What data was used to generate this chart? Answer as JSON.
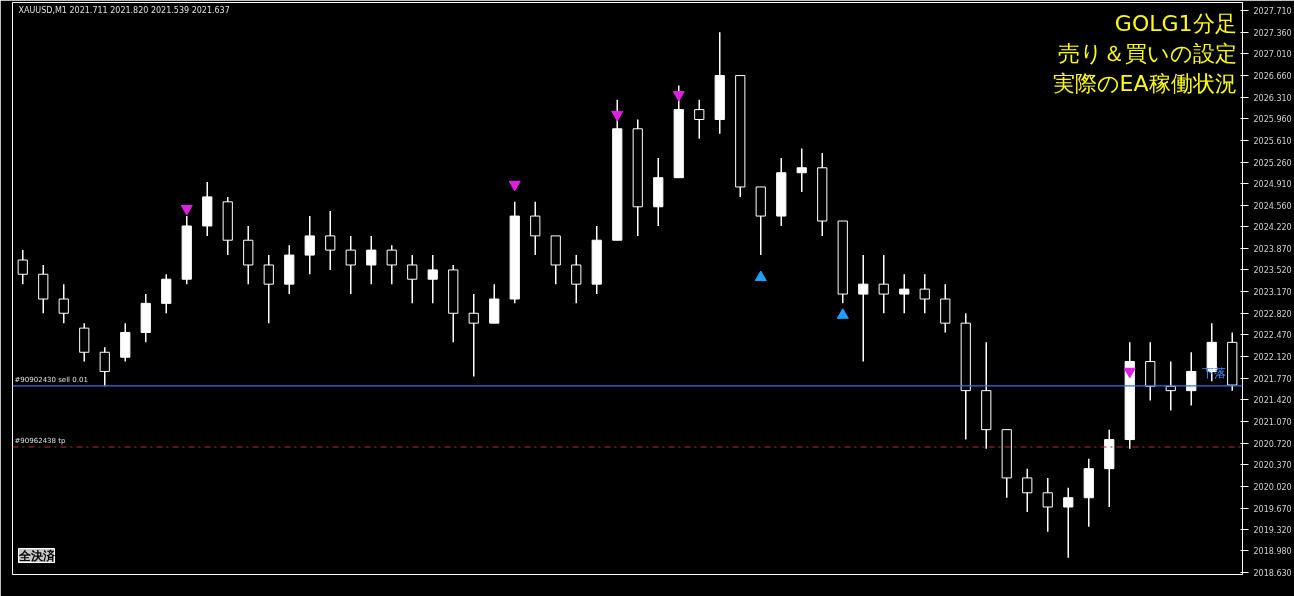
{
  "chart_data": {
    "type": "candlestick",
    "title": "GOLG1分足",
    "subtitle": "売り＆買いの設定",
    "color": "#ffffff",
    "categories": [
      null,
      null,
      null,
      null,
      null,
      null,
      null,
      null,
      null,
      null,
      null,
      null,
      null,
      null,
      null,
      null,
      null,
      null,
      null,
      null,
      null,
      null,
      null,
      null,
      null,
      null,
      null,
      null,
      null,
      null,
      null,
      null,
      null,
      null,
      null,
      null,
      null,
      null,
      null,
      null,
      null,
      null,
      null,
      null,
      null,
      null,
      null,
      null,
      null,
      null,
      null,
      null,
      null,
      null,
      null,
      null,
      null,
      null,
      null,
      null
    ],
    "ohlc": [
      [
        2023.68,
        2023.84,
        2023.29,
        2023.45
      ],
      [
        2023.45,
        2023.6,
        2022.82,
        2023.05
      ],
      [
        2023.05,
        2023.29,
        2022.66,
        2022.82
      ],
      [
        2022.58,
        2022.66,
        2022.04,
        2022.19
      ],
      [
        2022.19,
        2022.27,
        2021.64,
        2021.88
      ],
      [
        2022.11,
        2022.66,
        2022.04,
        2022.51
      ],
      [
        2022.51,
        2023.13,
        2022.35,
        2022.98
      ],
      [
        2022.98,
        2023.45,
        2022.82,
        2023.37
      ],
      [
        2023.37,
        2024.39,
        2023.29,
        2024.23
      ],
      [
        2024.23,
        2024.94,
        2024.07,
        2024.7
      ],
      [
        2024.62,
        2024.7,
        2023.76,
        2024.0
      ],
      [
        2024.0,
        2024.23,
        2023.29,
        2023.6
      ],
      [
        2023.6,
        2023.76,
        2022.66,
        2023.29
      ],
      [
        2023.29,
        2023.92,
        2023.13,
        2023.76
      ],
      [
        2023.76,
        2024.39,
        2023.45,
        2024.07
      ],
      [
        2024.07,
        2024.47,
        2023.52,
        2023.84
      ],
      [
        2023.84,
        2024.07,
        2023.13,
        2023.6
      ],
      [
        2023.6,
        2024.07,
        2023.29,
        2023.84
      ],
      [
        2023.84,
        2023.92,
        2023.29,
        2023.6
      ],
      [
        2023.6,
        2023.76,
        2022.98,
        2023.37
      ],
      [
        2023.37,
        2023.76,
        2022.98,
        2023.52
      ],
      [
        2023.52,
        2023.6,
        2022.35,
        2022.82
      ],
      [
        2022.82,
        2023.13,
        2021.8,
        2022.66
      ],
      [
        2022.66,
        2023.29,
        2022.66,
        2023.05
      ],
      [
        2023.05,
        2024.62,
        2022.98,
        2024.39
      ],
      [
        2024.39,
        2024.62,
        2023.76,
        2024.07
      ],
      [
        2024.07,
        2024.07,
        2023.29,
        2023.6
      ],
      [
        2023.6,
        2023.76,
        2022.98,
        2023.29
      ],
      [
        2023.29,
        2024.23,
        2023.13,
        2024.0
      ],
      [
        2024.0,
        2026.27,
        2024.0,
        2025.8
      ],
      [
        2025.8,
        2025.95,
        2024.07,
        2024.54
      ],
      [
        2024.54,
        2025.33,
        2024.23,
        2025.01
      ],
      [
        2025.01,
        2026.5,
        2025.01,
        2026.11
      ],
      [
        2026.11,
        2026.27,
        2025.64,
        2025.95
      ],
      [
        2025.95,
        2027.36,
        2025.72,
        2026.66
      ],
      [
        2026.66,
        2026.66,
        2024.7,
        2024.86
      ],
      [
        2024.86,
        2024.86,
        2023.76,
        2024.39
      ],
      [
        2024.39,
        2025.33,
        2024.23,
        2025.09
      ],
      [
        2025.09,
        2025.48,
        2024.78,
        2025.17
      ],
      [
        2025.17,
        2025.41,
        2024.07,
        2024.31
      ],
      [
        2024.31,
        2024.31,
        2022.98,
        2023.13
      ],
      [
        2023.13,
        2023.76,
        2022.04,
        2023.29
      ],
      [
        2023.29,
        2023.76,
        2022.82,
        2023.13
      ],
      [
        2023.13,
        2023.45,
        2022.82,
        2023.21
      ],
      [
        2023.21,
        2023.45,
        2022.82,
        2023.05
      ],
      [
        2023.05,
        2023.29,
        2022.51,
        2022.66
      ],
      [
        2022.66,
        2022.82,
        2020.78,
        2021.57
      ],
      [
        2021.57,
        2022.35,
        2020.63,
        2020.94
      ],
      [
        2020.94,
        2020.94,
        2019.84,
        2020.16
      ],
      [
        2020.16,
        2020.31,
        2019.61,
        2019.92
      ],
      [
        2019.92,
        2020.16,
        2019.29,
        2019.69
      ],
      [
        2019.69,
        2020.0,
        2018.87,
        2019.84
      ],
      [
        2019.84,
        2020.47,
        2019.37,
        2020.31
      ],
      [
        2020.31,
        2020.94,
        2019.69,
        2020.78
      ],
      [
        2020.78,
        2022.35,
        2020.63,
        2022.04
      ],
      [
        2022.04,
        2022.35,
        2021.41,
        2021.64
      ],
      [
        2021.64,
        2022.04,
        2021.25,
        2021.57
      ],
      [
        2021.57,
        2022.19,
        2021.33,
        2021.88
      ],
      [
        2021.88,
        2022.66,
        2021.72,
        2022.35
      ],
      [
        2022.35,
        2022.51,
        2021.57,
        2021.66
      ]
    ],
    "series": [
      {
        "type": "scatter",
        "color": "#e020e0",
        "values": [
          null,
          null,
          null,
          null,
          null,
          null,
          null,
          null,
          2024.51,
          null,
          null,
          null,
          null,
          null,
          null,
          null,
          null,
          null,
          null,
          null,
          null,
          null,
          null,
          null,
          2024.9,
          null,
          null,
          null,
          null,
          2026.03,
          null,
          null,
          2026.35,
          null,
          null,
          null,
          null,
          null,
          null,
          null,
          null,
          null,
          null,
          null,
          null,
          null,
          null,
          null,
          null,
          null,
          null,
          null,
          null,
          null,
          2021.88,
          null,
          null,
          null,
          null,
          null
        ]
      },
      {
        "type": "scatter",
        "marker": "triangle",
        "color": "#1ea0ff",
        "values": [
          null,
          null,
          null,
          null,
          null,
          null,
          null,
          null,
          null,
          null,
          null,
          null,
          null,
          null,
          null,
          null,
          null,
          null,
          null,
          null,
          null,
          null,
          null,
          null,
          null,
          null,
          null,
          null,
          null,
          null,
          null,
          null,
          null,
          null,
          null,
          null,
          2023.4,
          null,
          null,
          null,
          2022.79,
          null,
          null,
          null,
          null,
          null,
          null,
          null,
          null,
          null,
          null,
          null,
          null,
          null,
          null,
          null,
          null,
          null,
          null,
          null
        ]
      }
    ],
    "ylim": [
      2018.6,
      2027.84
    ],
    "yticks": [
      {
        "value": 2018.63,
        "label": "2018.630"
      },
      {
        "value": 2018.98,
        "label": "2018.980"
      },
      {
        "value": 2019.32,
        "label": "2019.320"
      },
      {
        "value": 2019.67,
        "label": "2019.670"
      },
      {
        "value": 2020.02,
        "label": "2020.020"
      },
      {
        "value": 2020.37,
        "label": "2020.370"
      },
      {
        "value": 2020.72,
        "label": "2020.720"
      },
      {
        "value": 2021.07,
        "label": "2021.070"
      },
      {
        "value": 2021.42,
        "label": "2021.420"
      },
      {
        "value": 2021.77,
        "label": "2021.770"
      },
      {
        "value": 2022.12,
        "label": "2022.120"
      },
      {
        "value": 2022.47,
        "label": "2022.470"
      },
      {
        "value": 2022.82,
        "label": "2022.820"
      },
      {
        "value": 2023.17,
        "label": "2023.170"
      },
      {
        "value": 2023.52,
        "label": "2023.520"
      },
      {
        "value": 2023.87,
        "label": "2023.870"
      },
      {
        "value": 2024.22,
        "label": "2024.220"
      },
      {
        "value": 2024.56,
        "label": "2024.560"
      },
      {
        "value": 2024.91,
        "label": "2024.910"
      },
      {
        "value": 2025.26,
        "label": "2025.260"
      },
      {
        "value": 2025.61,
        "label": "2025.610"
      },
      {
        "value": 2025.96,
        "label": "2025.960"
      },
      {
        "value": 2026.31,
        "label": "2026.310"
      },
      {
        "value": 2026.66,
        "label": "2026.660"
      },
      {
        "value": 2027.01,
        "label": "2027.010"
      },
      {
        "value": 2027.36,
        "label": "2027.360"
      },
      {
        "value": 2027.71,
        "label": "2027.710"
      }
    ],
    "ref_lines": [
      {
        "axis": "y",
        "value": 2021.647,
        "label": "#90902430 sell 0.01",
        "color": "#3a6fd8",
        "line_style": "solid"
      },
      {
        "axis": "y",
        "value": 2020.66,
        "label": "#90962438 tp",
        "color": "#cc2222",
        "line_style": "dashdot"
      }
    ],
    "annotations": [
      "XAUUSD,M1  2021.711 2021.820 2021.539 2021.637",
      "全決済",
      "実際のEA稼働状況",
      {
        "text": "下落",
        "y": 2021.647
      }
    ]
  }
}
